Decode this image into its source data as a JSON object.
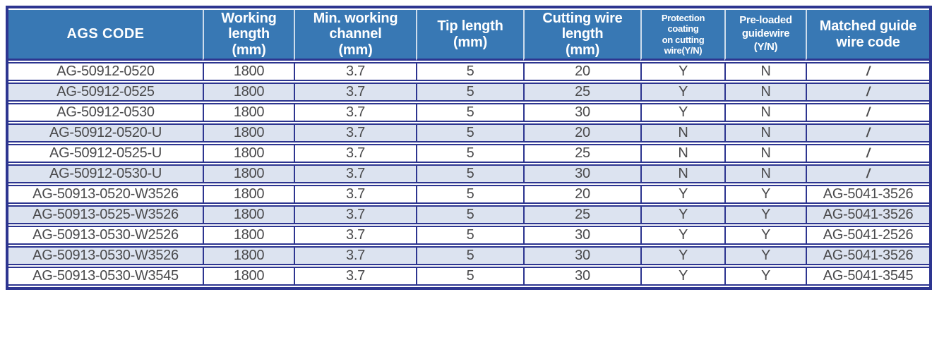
{
  "table": {
    "columns": [
      {
        "label": "AGS CODE"
      },
      {
        "label": "Working\nlength\n(mm)"
      },
      {
        "label": "Min. working\nchannel\n(mm)"
      },
      {
        "label": "Tip length\n(mm)"
      },
      {
        "label": "Cutting wire\nlength\n(mm)"
      },
      {
        "label": "Protection\ncoating\non cutting\nwire(Y/N)"
      },
      {
        "label": "Pre-loaded\nguidewire\n(Y/N)"
      },
      {
        "label": "Matched guide\nwire code"
      }
    ],
    "rows": [
      [
        "AG-50912-0520",
        "1800",
        "3.7",
        "5",
        "20",
        "Y",
        "N",
        "/"
      ],
      [
        "AG-50912-0525",
        "1800",
        "3.7",
        "5",
        "25",
        "Y",
        "N",
        "/"
      ],
      [
        "AG-50912-0530",
        "1800",
        "3.7",
        "5",
        "30",
        "Y",
        "N",
        "/"
      ],
      [
        "AG-50912-0520-U",
        "1800",
        "3.7",
        "5",
        "20",
        "N",
        "N",
        "/"
      ],
      [
        "AG-50912-0525-U",
        "1800",
        "3.7",
        "5",
        "25",
        "N",
        "N",
        "/"
      ],
      [
        "AG-50912-0530-U",
        "1800",
        "3.7",
        "5",
        "30",
        "N",
        "N",
        "/"
      ],
      [
        "AG-50913-0520-W3526",
        "1800",
        "3.7",
        "5",
        "20",
        "Y",
        "Y",
        "AG-5041-3526"
      ],
      [
        "AG-50913-0525-W3526",
        "1800",
        "3.7",
        "5",
        "25",
        "Y",
        "Y",
        "AG-5041-3526"
      ],
      [
        "AG-50913-0530-W2526",
        "1800",
        "3.7",
        "5",
        "30",
        "Y",
        "Y",
        "AG-5041-2526"
      ],
      [
        "AG-50913-0530-W3526",
        "1800",
        "3.7",
        "5",
        "30",
        "Y",
        "Y",
        "AG-5041-3526"
      ],
      [
        "AG-50913-0530-W3545",
        "1800",
        "3.7",
        "5",
        "30",
        "Y",
        "Y",
        "AG-5041-3545"
      ]
    ]
  },
  "colors": {
    "header_background": "#3878b4",
    "header_text": "#ffffff",
    "border": "#2d3590",
    "stripe_row": "#dce3f0",
    "cell_text": "#4a4a4c"
  }
}
